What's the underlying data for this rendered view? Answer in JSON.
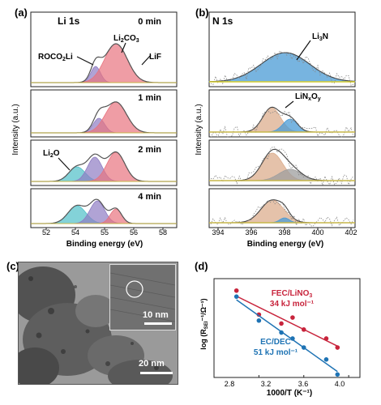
{
  "panels": {
    "a": {
      "label": "(a)",
      "element": "Li 1s",
      "xlabel": "Binding energy (eV)",
      "ylabel": "Intensity (a.u.)",
      "xticks": [
        "54",
        "56",
        "58"
      ],
      "times": [
        "0 min",
        "1 min",
        "2 min",
        "4 min"
      ],
      "annotations": [
        "ROCO2Li",
        "Li2CO3",
        "LiF",
        "Li2O"
      ]
    },
    "b": {
      "label": "(b)",
      "element": "N 1s",
      "xlabel": "Binding energy (eV)",
      "xticks": [
        "394",
        "396",
        "398",
        "400",
        "402"
      ],
      "annotations": [
        "Li3N",
        "LiNxOy"
      ]
    },
    "c": {
      "label": "(c)",
      "scalebar_main": "20 nm",
      "scalebar_inset": "10 nm"
    },
    "d": {
      "label": "(d)",
      "xlabel": "1000/T (K⁻¹)",
      "ylabel": "log (R_SEI⁻¹/Ω⁻¹)",
      "xticks": [
        "2.8",
        "3.2",
        "3.6",
        "4.0"
      ],
      "series_labels": [
        {
          "name": "FEC/LiNO3",
          "energy": "34 kJ mol⁻¹",
          "color": "#c8243c"
        },
        {
          "name": "EC/DEC",
          "energy": "51 kJ mol⁻¹",
          "color": "#1e73b4"
        }
      ]
    }
  },
  "colors": {
    "red": "#e8737f",
    "purple": "#8e7cc3",
    "cyan": "#4fbfc7",
    "blue": "#4a9bd6",
    "orange": "#dcae8e",
    "gray": "#9e9e9e",
    "yellow": "#d8cf2e"
  },
  "chart_data": {
    "type": "scatter",
    "x": [
      3.0,
      3.2,
      3.4,
      3.5,
      3.6,
      3.8,
      3.9
    ],
    "series": [
      {
        "name": "FEC/LiNO3",
        "values": [
          -0.4,
          -1.2,
          -1.5,
          -1.3,
          -1.7,
          -2.0,
          -2.3
        ]
      },
      {
        "name": "EC/DEC",
        "values": [
          -0.6,
          -1.4,
          -1.8,
          -2.0,
          -2.3,
          -2.7,
          -3.2
        ]
      }
    ],
    "xlim": [
      2.8,
      4.1
    ],
    "ylim": [
      -3.3,
      0.0
    ]
  }
}
